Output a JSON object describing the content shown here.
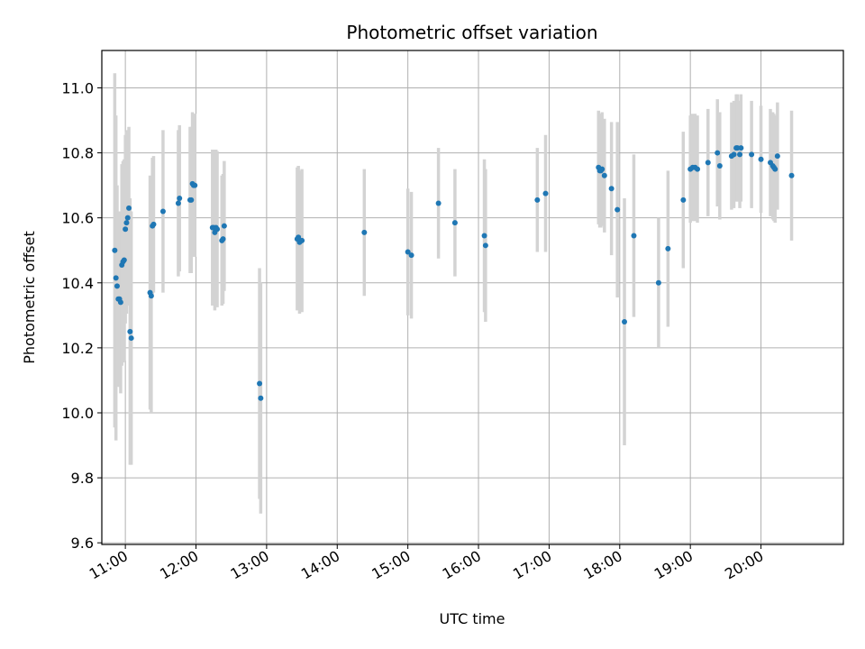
{
  "chart_data": {
    "type": "scatter",
    "title": "Photometric offset variation",
    "xlabel": "UTC time",
    "ylabel": "Photometric offset",
    "xlim": [
      "10:40",
      "21:10"
    ],
    "ylim": [
      9.595,
      11.115
    ],
    "grid": true,
    "x_ticks": [
      "11:00",
      "12:00",
      "13:00",
      "14:00",
      "15:00",
      "16:00",
      "17:00",
      "18:00",
      "19:00",
      "20:00"
    ],
    "y_ticks": [
      9.6,
      9.8,
      10.0,
      10.2,
      10.4,
      10.6,
      10.8,
      11.0
    ],
    "y_tick_labels": [
      "9.6",
      "9.8",
      "10.0",
      "10.2",
      "10.4",
      "10.6",
      "10.8",
      "11.0"
    ],
    "colors": {
      "points": "#1f77b4",
      "error_bars": "#d3d3d3",
      "grid": "#b0b0b0",
      "axes": "#000000"
    },
    "series": [
      {
        "x": [
          "10:51",
          "10:52",
          "10:53",
          "10:54",
          "10:55",
          "10:56",
          "10:57",
          "10:58",
          "10:59",
          "11:00",
          "11:01",
          "11:02",
          "11:03",
          "11:04",
          "11:05",
          "11:21",
          "11:22",
          "11:23",
          "11:24",
          "11:32",
          "11:45",
          "11:46",
          "11:55",
          "11:56",
          "11:57",
          "11:58",
          "11:59",
          "12:14",
          "12:15",
          "12:16",
          "12:17",
          "12:18",
          "12:22",
          "12:23",
          "12:24",
          "12:54",
          "12:55",
          "13:26",
          "13:27",
          "13:28",
          "13:30",
          "14:23",
          "15:00",
          "15:03",
          "15:26",
          "15:40",
          "16:05",
          "16:06",
          "16:50",
          "16:57",
          "17:42",
          "17:43",
          "17:44",
          "17:45",
          "17:47",
          "17:53",
          "17:58",
          "18:04",
          "18:12",
          "18:33",
          "18:41",
          "18:54",
          "19:00",
          "19:02",
          "19:04",
          "19:06",
          "19:15",
          "19:23",
          "19:25",
          "19:35",
          "19:37",
          "19:39",
          "19:40",
          "19:42",
          "19:43",
          "19:52",
          "20:00",
          "20:08",
          "20:10",
          "20:11",
          "20:12",
          "20:14",
          "20:26"
        ],
        "y": [
          10.5,
          10.415,
          10.39,
          10.35,
          10.35,
          10.34,
          10.455,
          10.465,
          10.47,
          10.565,
          10.585,
          10.6,
          10.63,
          10.25,
          10.23,
          10.37,
          10.36,
          10.575,
          10.58,
          10.62,
          10.645,
          10.66,
          10.655,
          10.655,
          10.705,
          10.7,
          10.7,
          10.57,
          10.57,
          10.555,
          10.57,
          10.565,
          10.53,
          10.535,
          10.575,
          10.09,
          10.045,
          10.535,
          10.54,
          10.525,
          10.53,
          10.555,
          10.495,
          10.485,
          10.645,
          10.585,
          10.545,
          10.515,
          10.655,
          10.675,
          10.755,
          10.745,
          10.745,
          10.75,
          10.73,
          10.69,
          10.625,
          10.28,
          10.545,
          10.4,
          10.505,
          10.655,
          10.75,
          10.755,
          10.755,
          10.75,
          10.77,
          10.8,
          10.76,
          10.79,
          10.795,
          10.815,
          10.815,
          10.795,
          10.815,
          10.795,
          10.78,
          10.77,
          10.76,
          10.755,
          10.75,
          10.79,
          10.73
        ],
        "yerr": [
          0.545,
          0.5,
          0.31,
          0.27,
          0.27,
          0.28,
          0.31,
          0.31,
          0.31,
          0.29,
          0.28,
          0.27,
          0.25,
          0.41,
          0.39,
          0.36,
          0.36,
          0.21,
          0.21,
          0.25,
          0.225,
          0.225,
          0.225,
          0.225,
          0.22,
          0.22,
          0.22,
          0.24,
          0.24,
          0.24,
          0.24,
          0.24,
          0.2,
          0.2,
          0.2,
          0.355,
          0.355,
          0.22,
          0.22,
          0.22,
          0.22,
          0.195,
          0.195,
          0.195,
          0.17,
          0.165,
          0.235,
          0.235,
          0.16,
          0.18,
          0.175,
          0.175,
          0.175,
          0.175,
          0.175,
          0.205,
          0.27,
          0.38,
          0.25,
          0.2,
          0.24,
          0.21,
          0.165,
          0.165,
          0.165,
          0.165,
          0.165,
          0.165,
          0.165,
          0.165,
          0.165,
          0.165,
          0.165,
          0.165,
          0.165,
          0.165,
          0.165,
          0.165,
          0.165,
          0.165,
          0.165,
          0.165,
          0.2
        ]
      }
    ]
  }
}
